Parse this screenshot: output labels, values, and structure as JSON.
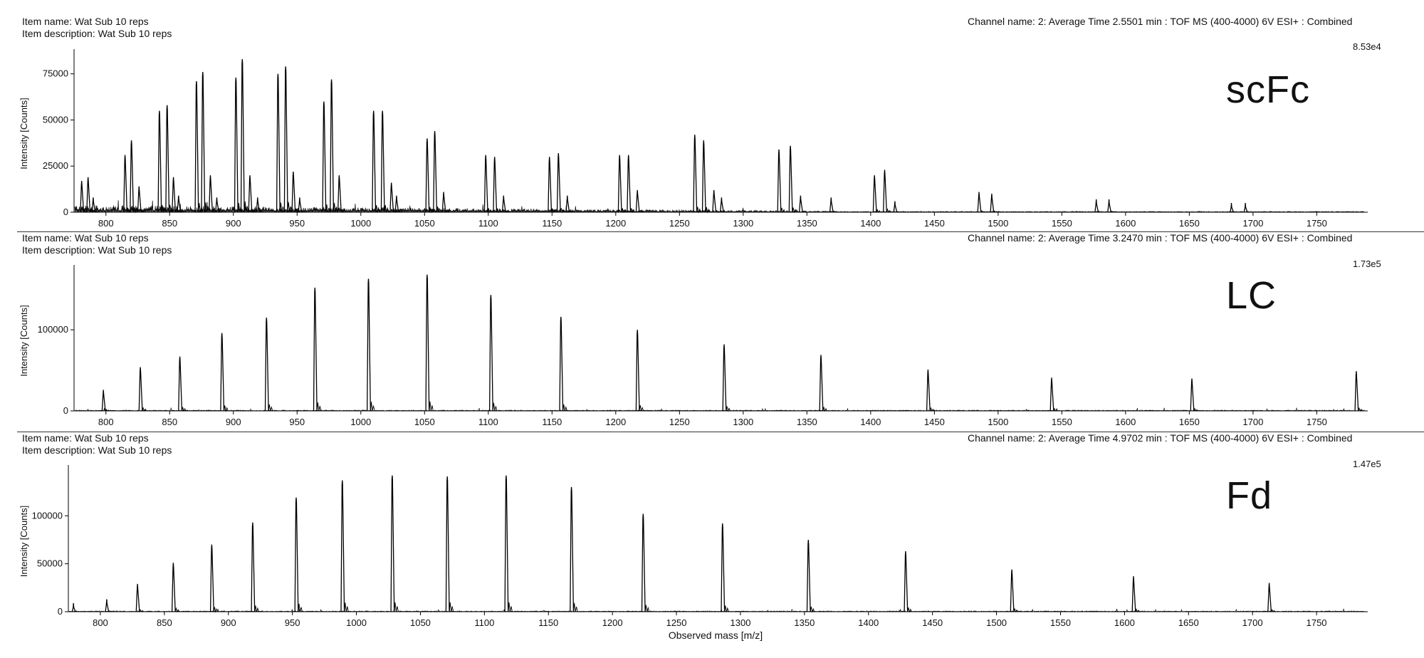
{
  "panels": [
    {
      "item_name": "Item name:  Wat Sub 10 reps",
      "item_description": "Item description:  Wat Sub 10 reps",
      "channel": "Channel name: 2: Average Time 2.5501 min : TOF MS (400-4000) 6V ESI+ : Combined",
      "max_intensity": "8.53e4",
      "label": "scFc"
    },
    {
      "item_name": "Item name:  Wat Sub 10 reps",
      "item_description": "Item description:  Wat Sub 10 reps",
      "channel": "Channel name: 2: Average Time 3.2470 min : TOF MS (400-4000) 6V ESI+ : Combined",
      "max_intensity": "1.73e5",
      "label": "LC"
    },
    {
      "item_name": "Item name:  Wat Sub 10 reps",
      "item_description": "Item description:  Wat Sub 10 reps",
      "channel": "Channel name: 2: Average Time 4.9702 min : TOF MS (400-4000) 6V ESI+ : Combined",
      "max_intensity": "1.47e5",
      "label": "Fd"
    }
  ],
  "x_axis_label": "Observed mass [m/z]",
  "chart_data": [
    {
      "type": "line",
      "title": "scFc",
      "xlabel": "",
      "ylabel": "Intensity [Counts]",
      "xlim": [
        775,
        1790
      ],
      "ylim": [
        0,
        85300
      ],
      "x_ticks": [
        800,
        850,
        900,
        950,
        1000,
        1050,
        1100,
        1150,
        1200,
        1250,
        1300,
        1350,
        1400,
        1450,
        1500,
        1550,
        1600,
        1650,
        1700,
        1750
      ],
      "y_ticks": [
        0,
        25000,
        50000,
        75000
      ],
      "noise": "dense",
      "peaks": [
        [
          781,
          17000
        ],
        [
          786,
          19000
        ],
        [
          790,
          8000
        ],
        [
          815,
          31000
        ],
        [
          820,
          39000
        ],
        [
          826,
          14000
        ],
        [
          842,
          55000
        ],
        [
          848,
          58000
        ],
        [
          853,
          19000
        ],
        [
          857,
          9000
        ],
        [
          871,
          71000
        ],
        [
          876,
          76000
        ],
        [
          882,
          20000
        ],
        [
          887,
          8000
        ],
        [
          902,
          73000
        ],
        [
          907,
          83000
        ],
        [
          913,
          20000
        ],
        [
          919,
          8000
        ],
        [
          935,
          75000
        ],
        [
          941,
          79000
        ],
        [
          947,
          22000
        ],
        [
          952,
          8000
        ],
        [
          971,
          60000
        ],
        [
          977,
          72000
        ],
        [
          983,
          20000
        ],
        [
          1010,
          55000
        ],
        [
          1017,
          55000
        ],
        [
          1024,
          16000
        ],
        [
          1028,
          9000
        ],
        [
          1052,
          40000
        ],
        [
          1058,
          44000
        ],
        [
          1065,
          11000
        ],
        [
          1098,
          31000
        ],
        [
          1105,
          30000
        ],
        [
          1112,
          9000
        ],
        [
          1148,
          30000
        ],
        [
          1155,
          32000
        ],
        [
          1162,
          9000
        ],
        [
          1203,
          31000
        ],
        [
          1210,
          31000
        ],
        [
          1217,
          12000
        ],
        [
          1262,
          42000
        ],
        [
          1269,
          39000
        ],
        [
          1277,
          12000
        ],
        [
          1283,
          8000
        ],
        [
          1328,
          34000
        ],
        [
          1337,
          36000
        ],
        [
          1345,
          9000
        ],
        [
          1369,
          8000
        ],
        [
          1403,
          20000
        ],
        [
          1411,
          23000
        ],
        [
          1419,
          6000
        ],
        [
          1485,
          11000
        ],
        [
          1495,
          10000
        ],
        [
          1577,
          7000
        ],
        [
          1587,
          7000
        ],
        [
          1683,
          5000
        ],
        [
          1694,
          5000
        ]
      ]
    },
    {
      "type": "line",
      "title": "LC",
      "xlabel": "",
      "ylabel": "Intensity [Counts]",
      "xlim": [
        775,
        1790
      ],
      "ylim": [
        0,
        173000
      ],
      "x_ticks": [
        800,
        850,
        900,
        950,
        1000,
        1050,
        1100,
        1150,
        1200,
        1250,
        1300,
        1350,
        1400,
        1450,
        1500,
        1550,
        1600,
        1650,
        1700,
        1750
      ],
      "y_ticks": [
        0,
        100000
      ],
      "noise": "light",
      "peaks": [
        [
          798,
          26000
        ],
        [
          827,
          54000
        ],
        [
          858,
          67000
        ],
        [
          891,
          96000
        ],
        [
          926,
          115000
        ],
        [
          964,
          152000
        ],
        [
          1006,
          163000
        ],
        [
          1052,
          168000
        ],
        [
          1102,
          143000
        ],
        [
          1157,
          116000
        ],
        [
          1217,
          100000
        ],
        [
          1285,
          82000
        ],
        [
          1361,
          69000
        ],
        [
          1445,
          51000
        ],
        [
          1542,
          41000
        ],
        [
          1652,
          40000
        ],
        [
          1781,
          49000
        ]
      ]
    },
    {
      "type": "line",
      "title": "Fd",
      "xlabel": "Observed mass [m/z]",
      "ylabel": "Intensity [Counts]",
      "xlim": [
        775,
        1790
      ],
      "ylim": [
        0,
        147000
      ],
      "x_ticks": [
        800,
        850,
        900,
        950,
        1000,
        1050,
        1100,
        1150,
        1200,
        1250,
        1300,
        1350,
        1400,
        1450,
        1500,
        1550,
        1600,
        1650,
        1700,
        1750
      ],
      "y_ticks": [
        0,
        50000,
        100000
      ],
      "noise": "light",
      "peaks": [
        [
          779,
          9000
        ],
        [
          805,
          13000
        ],
        [
          829,
          29000
        ],
        [
          857,
          51000
        ],
        [
          887,
          70000
        ],
        [
          919,
          93000
        ],
        [
          953,
          119000
        ],
        [
          989,
          137000
        ],
        [
          1028,
          142000
        ],
        [
          1071,
          141000
        ],
        [
          1117,
          142000
        ],
        [
          1168,
          130000
        ],
        [
          1224,
          102000
        ],
        [
          1286,
          92000
        ],
        [
          1353,
          75000
        ],
        [
          1429,
          63000
        ],
        [
          1512,
          44000
        ],
        [
          1607,
          37000
        ],
        [
          1713,
          30000
        ]
      ]
    }
  ]
}
